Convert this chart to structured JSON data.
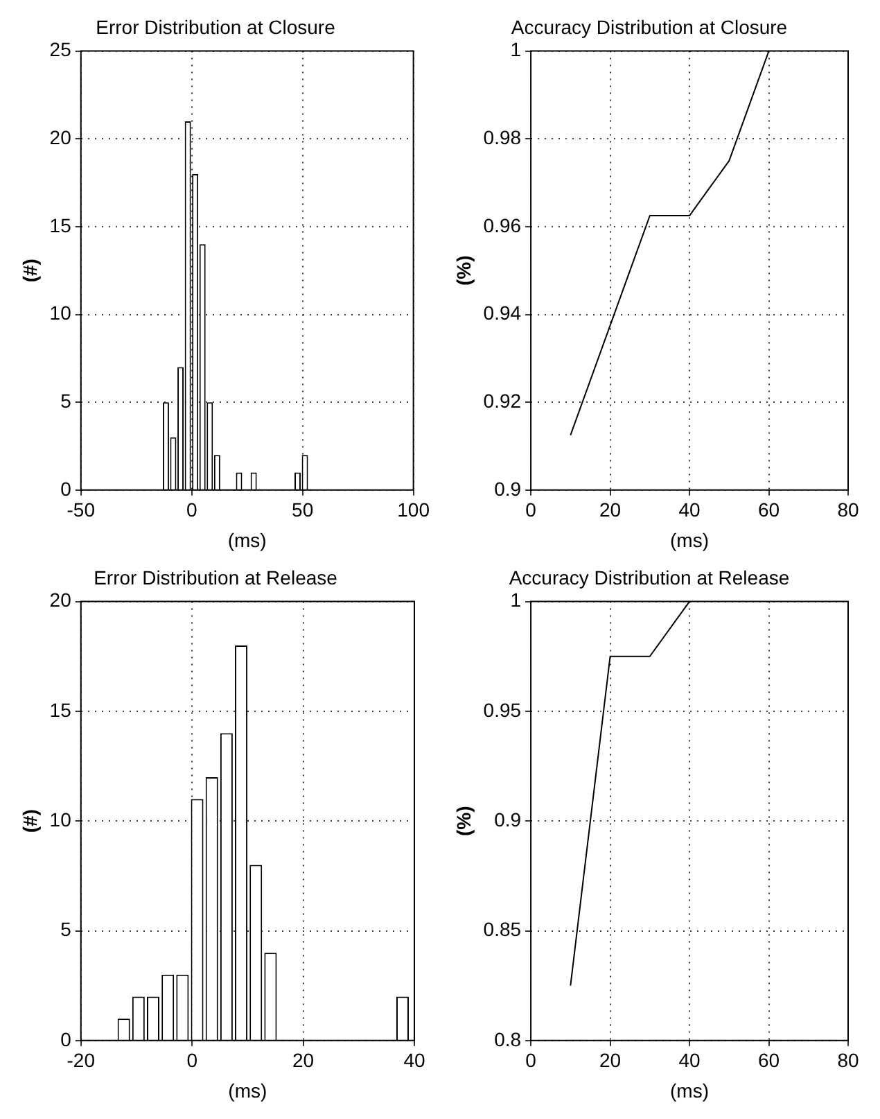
{
  "chart_data": [
    {
      "type": "histogram",
      "title": "Error Distribution at Closure",
      "xlabel": "(ms)",
      "ylabel": "(#)",
      "color": "#ffffff",
      "bins": [
        -13.3,
        -10,
        -6.7,
        -3.4,
        -0.1,
        3.2,
        6.5,
        9.8,
        13.1,
        16.4,
        19.7,
        23,
        26.3,
        29.6,
        32.9,
        36.2,
        39.5,
        42.8,
        46.1,
        49.4,
        52.7
      ],
      "values": [
        5,
        3,
        7,
        21,
        18,
        14,
        5,
        2,
        0,
        0,
        1,
        0,
        1,
        0,
        0,
        0,
        0,
        0,
        1,
        2
      ],
      "xlim": [
        -50,
        100
      ],
      "xticks": [
        -50,
        0,
        50,
        100
      ],
      "ylim": [
        0,
        25
      ],
      "yticks": [
        0,
        5,
        10,
        15,
        20,
        25
      ],
      "grid": true
    },
    {
      "type": "line",
      "title": "Accuracy Distribution at Closure",
      "xlabel": "(ms)",
      "ylabel": "(%)",
      "color": "#000000",
      "x": [
        10,
        20,
        30,
        40,
        50,
        60
      ],
      "values": [
        0.9125,
        0.9375,
        0.9625,
        0.9625,
        0.975,
        1
      ],
      "xlim": [
        0,
        80
      ],
      "xticks": [
        0,
        20,
        40,
        60,
        80
      ],
      "ylim": [
        0.9,
        1
      ],
      "yticks": [
        0.9,
        0.92,
        0.94,
        0.96,
        0.98,
        1
      ],
      "grid": true
    },
    {
      "type": "histogram",
      "title": "Error Distribution at Release",
      "xlabel": "(ms)",
      "ylabel": "(#)",
      "color": "#ffffff",
      "bins": [
        -13.6,
        -10.96,
        -8.32,
        -5.68,
        -3.04,
        -0.4,
        2.24,
        4.88,
        7.52,
        10.16,
        12.8,
        15.44,
        18.08,
        20.72,
        23.36,
        26,
        28.64,
        31.28,
        33.92,
        36.56,
        39.2
      ],
      "values": [
        1,
        2,
        2,
        3,
        3,
        11,
        12,
        14,
        18,
        8,
        4,
        0,
        0,
        0,
        0,
        0,
        0,
        0,
        0,
        2
      ],
      "xlim": [
        -20,
        40
      ],
      "xticks": [
        -20,
        0,
        20,
        40
      ],
      "ylim": [
        0,
        20
      ],
      "yticks": [
        0,
        5,
        10,
        15,
        20
      ],
      "grid": true
    },
    {
      "type": "line",
      "title": "Accuracy Distribution at Release",
      "xlabel": "(ms)",
      "ylabel": "(%)",
      "color": "#000000",
      "x": [
        10,
        20,
        30,
        40
      ],
      "values": [
        0.825,
        0.975,
        0.975,
        1
      ],
      "xlim": [
        0,
        80
      ],
      "xticks": [
        0,
        20,
        40,
        60,
        80
      ],
      "ylim": [
        0.8,
        1
      ],
      "yticks": [
        0.8,
        0.85,
        0.9,
        0.95,
        1
      ],
      "grid": true
    }
  ]
}
